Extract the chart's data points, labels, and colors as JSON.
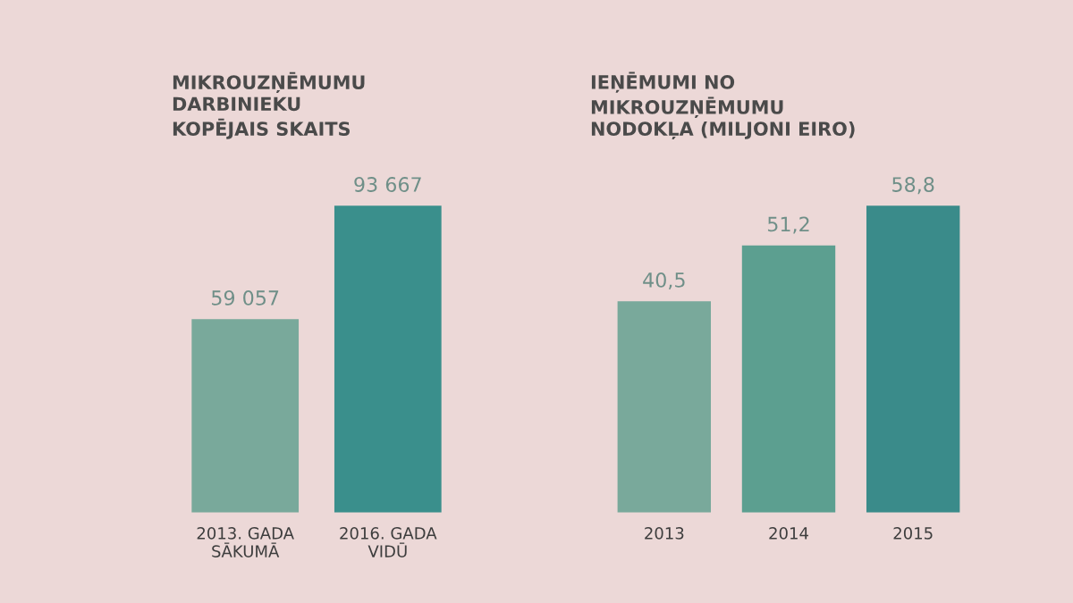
{
  "chart_data": [
    {
      "type": "bar",
      "title": "MIKROUZŅĒMUMU\nDARBINIEKU\nKOPĒJAIS SKAITS",
      "categories": [
        "2013. GADA\nSĀKUMĀ",
        "2016. GADA\nVIDŪ"
      ],
      "values": [
        59057,
        93667
      ],
      "colors": [
        "#79a99b",
        "#3a8f8c"
      ],
      "value_labels": [
        "59 057",
        "93 667"
      ],
      "tick_labels": "x"
    },
    {
      "type": "bar",
      "title": "IEŅĒMUMI NO\nMIKROUZŅĒMUMU\nNODOKĻA (MILJONI EIRO)",
      "categories": [
        "2013",
        "2014",
        "2015"
      ],
      "values": [
        40.5,
        51.2,
        58.8
      ],
      "colors": [
        "#79a99b",
        "#5c9f90",
        "#3a8b8a"
      ],
      "value_labels": [
        "40,5",
        "51,2",
        "58,8"
      ],
      "tick_labels": "x"
    }
  ]
}
